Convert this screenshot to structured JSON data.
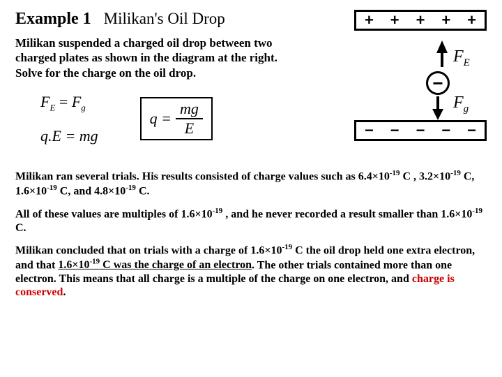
{
  "header": {
    "example_label": "Example 1",
    "title": "Milikan's Oil Drop"
  },
  "intro": "Milikan suspended a charged oil drop between two charged plates as shown in the diagram at the right. Solve for the charge on the oil drop.",
  "diagram": {
    "top_plate_symbol": "+",
    "bottom_plate_symbol": "−",
    "drop_symbol": "−",
    "force_up": "F",
    "force_up_sub": "E",
    "force_down": "F",
    "force_down_sub": "g",
    "plate_count": 5,
    "colors": {
      "border": "#000000",
      "background": "#ffffff"
    }
  },
  "equations": {
    "eq1_lhs": "F",
    "eq1_lhs_sub": "E",
    "eq1_eq": " = ",
    "eq1_rhs": "F",
    "eq1_rhs_sub": "g",
    "eq2": "q.E = mg",
    "boxed_lhs": "q = ",
    "boxed_num": "mg",
    "boxed_den": "E"
  },
  "para1": {
    "text_a": "Milikan ran several trials. His results consisted of charge values such as 6.4×10",
    "exp1": "-19",
    "text_b": " C , 3.2×10",
    "exp2": "-19",
    "text_c": " C, 1.6×10",
    "exp3": "-19",
    "text_d": " C, and 4.8×10",
    "exp4": "-19",
    "text_e": " C."
  },
  "para2": {
    "text_a": "All of these values are multiples of  1.6×10",
    "exp1": "-19",
    "text_b": " , and he never recorded a result smaller than  1.6×10",
    "exp2": "-19",
    "text_c": " C."
  },
  "para3": {
    "text_a": "Milikan concluded that on trials with a charge of  1.6×10",
    "exp1": "-19",
    "text_b": " C the oil drop held one extra electron, and that  ",
    "underline_a": "1.6×10",
    "exp2": "-19",
    "underline_b": " C was the charge of an electron",
    "text_c": ". The other trials contained more than one electron. This means that all charge is a multiple of the charge on one electron, and ",
    "red_text": "charge is conserved",
    "text_d": "."
  }
}
